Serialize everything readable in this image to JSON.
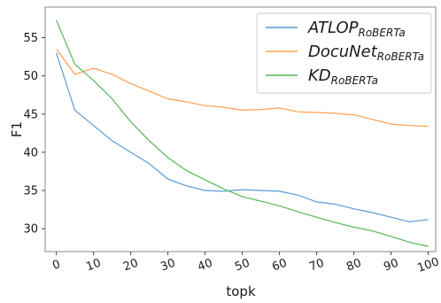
{
  "chart_data": {
    "type": "line",
    "title": "",
    "xlabel": "topk",
    "ylabel": "F1",
    "xlim": [
      -3,
      102
    ],
    "ylim": [
      27,
      59
    ],
    "xticks": [
      0,
      10,
      20,
      30,
      40,
      50,
      60,
      70,
      80,
      90,
      100
    ],
    "yticks": [
      30,
      35,
      40,
      45,
      50,
      55
    ],
    "grid": false,
    "legend_position": "top-right",
    "x": [
      0,
      5,
      10,
      15,
      20,
      25,
      30,
      35,
      40,
      45,
      50,
      55,
      60,
      65,
      70,
      75,
      80,
      85,
      90,
      95,
      100
    ],
    "series": [
      {
        "name": "ATLOP",
        "subscript": "RoBERTa",
        "color": "#5b9bd5",
        "values": [
          53.0,
          45.5,
          43.5,
          41.5,
          40.0,
          38.5,
          36.5,
          35.6,
          35.0,
          34.9,
          35.1,
          35.0,
          34.9,
          34.4,
          33.5,
          33.2,
          32.6,
          32.1,
          31.5,
          30.9,
          31.2
        ]
      },
      {
        "name": "DocuNet",
        "subscript": "RoBERTa",
        "color": "#ffa04d",
        "values": [
          53.5,
          50.2,
          51.0,
          50.2,
          49.0,
          48.0,
          47.0,
          46.6,
          46.1,
          45.9,
          45.5,
          45.6,
          45.8,
          45.3,
          45.2,
          45.1,
          44.9,
          44.3,
          43.7,
          43.5,
          43.4
        ]
      },
      {
        "name": "KD",
        "subscript": "RoBERTa",
        "color": "#55b755",
        "values": [
          57.3,
          51.5,
          49.4,
          47.0,
          44.0,
          41.5,
          39.3,
          37.6,
          36.4,
          35.2,
          34.2,
          33.6,
          33.0,
          32.2,
          31.5,
          30.8,
          30.2,
          29.7,
          29.0,
          28.2,
          27.7
        ]
      }
    ]
  }
}
